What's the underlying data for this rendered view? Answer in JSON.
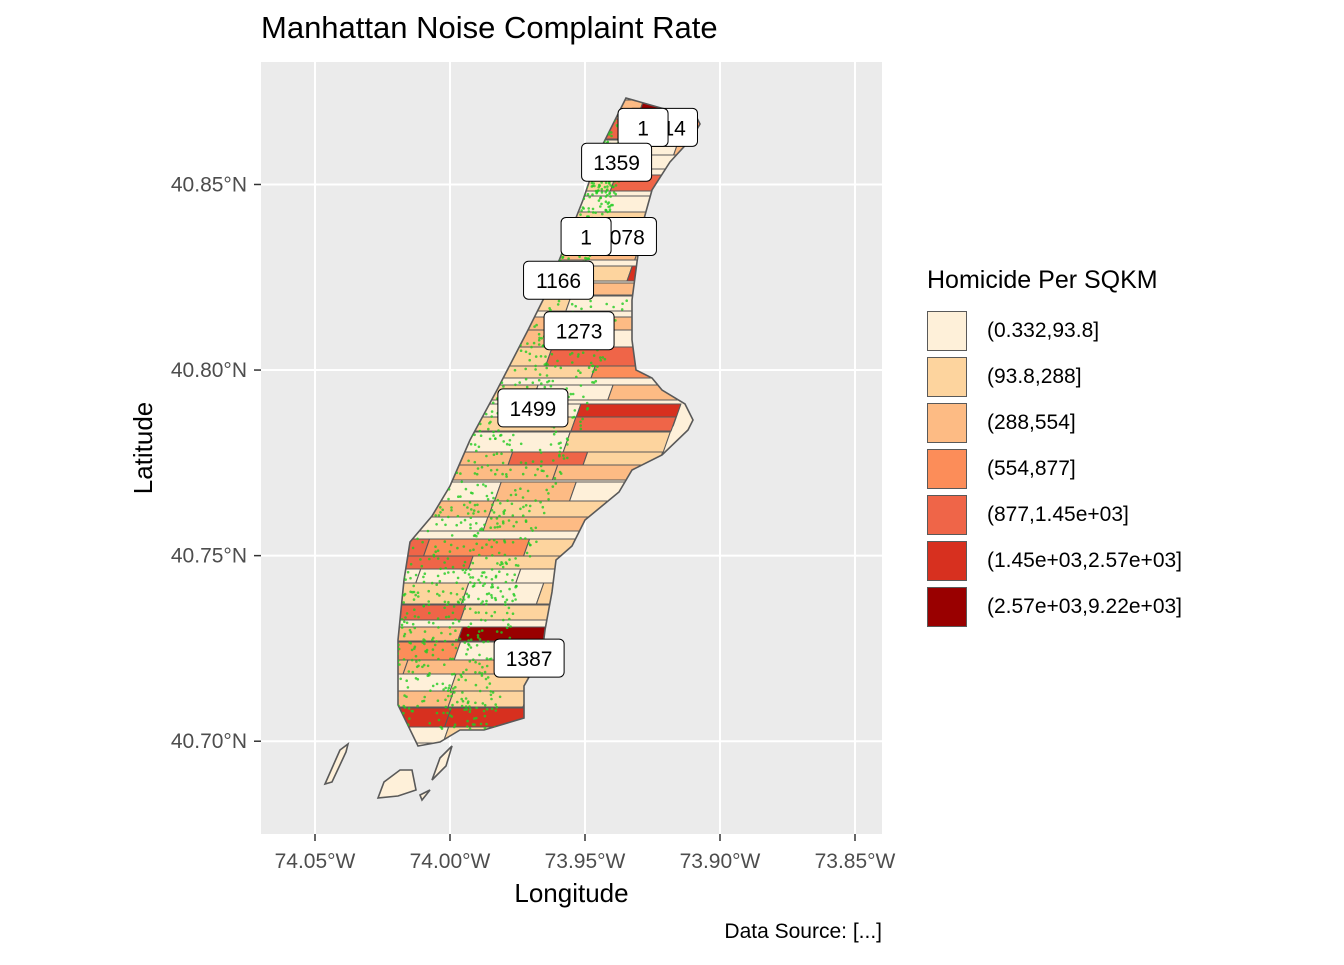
{
  "title": "Manhattan Noise Complaint Rate",
  "caption": "Data Source: [...]",
  "axes": {
    "xlabel": "Longitude",
    "ylabel": "Latitude",
    "x_ticks": [
      "74.05°W",
      "74.00°W",
      "73.95°W",
      "73.90°W",
      "73.85°W"
    ],
    "y_ticks": [
      "40.85°N",
      "40.80°N",
      "40.75°N",
      "40.70°N"
    ]
  },
  "legend": {
    "title": "Homicide Per SQKM",
    "items": [
      {
        "label": "(0.332,93.8]",
        "color": "#fef0d9"
      },
      {
        "label": "(93.8,288]",
        "color": "#fdd49e"
      },
      {
        "label": "(288,554]",
        "color": "#fdbb84"
      },
      {
        "label": "(554,877]",
        "color": "#fc8d59"
      },
      {
        "label": "(877,1.45e+03]",
        "color": "#ef6548"
      },
      {
        "label": "(1.45e+03,2.57e+03]",
        "color": "#d7301f"
      },
      {
        "label": "(2.57e+03,9.22e+03]",
        "color": "#990000"
      }
    ]
  },
  "point_color": "#22cc22",
  "panel_background": "#ebebeb",
  "chart_data": {
    "type": "map",
    "x_axis": "longitude",
    "y_axis": "latitude",
    "xlim": [
      -74.07,
      -73.84
    ],
    "ylim": [
      40.675,
      40.883
    ],
    "x_breaks": [
      -74.05,
      -74.0,
      -73.95,
      -73.9,
      -73.85
    ],
    "y_breaks": [
      40.85,
      40.8,
      40.75,
      40.7
    ],
    "grid": true,
    "legend_position": "right",
    "labels": [
      {
        "text": "1914",
        "lon": -73.9213,
        "lat": 40.8654
      },
      {
        "text": "1",
        "lon": -73.9285,
        "lat": 40.8654
      },
      {
        "text": "1359",
        "lon": -73.9383,
        "lat": 40.856
      },
      {
        "text": "1078",
        "lon": -73.9365,
        "lat": 40.836
      },
      {
        "text": "1",
        "lon": -73.9496,
        "lat": 40.836
      },
      {
        "text": "1166",
        "lon": -73.9598,
        "lat": 40.8242
      },
      {
        "text": "1273",
        "lon": -73.9522,
        "lat": 40.8106
      },
      {
        "text": "1499",
        "lon": -73.9693,
        "lat": 40.7898
      },
      {
        "text": "1387",
        "lon": -73.9707,
        "lat": 40.7224
      }
    ]
  }
}
